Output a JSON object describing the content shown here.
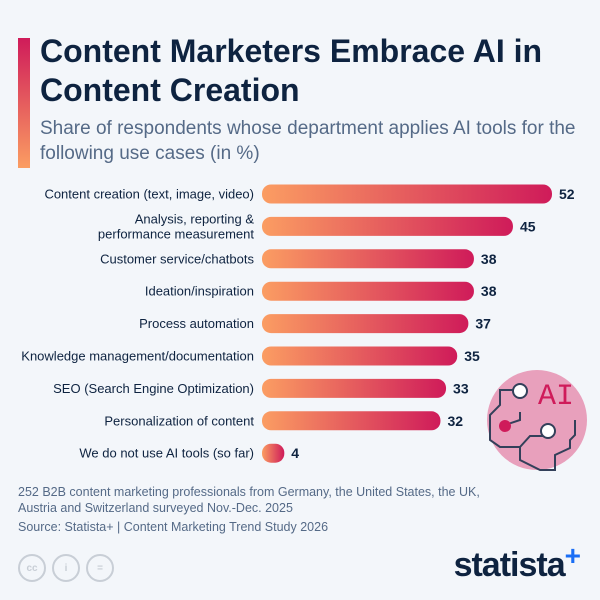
{
  "header": {
    "title": "Content Marketers Embrace AI in Content Creation",
    "subtitle": "Share of respondents whose department applies AI tools for the following use cases (in %)"
  },
  "chart_data": {
    "type": "bar",
    "orientation": "horizontal",
    "title": "Content Marketers Embrace AI in Content Creation",
    "subtitle": "Share of respondents whose department applies AI tools for the following use cases (in %)",
    "categories": [
      [
        "Content creation (text, image, video)"
      ],
      [
        "Analysis, reporting &",
        "performance measurement"
      ],
      [
        "Customer service/chatbots"
      ],
      [
        "Ideation/inspiration"
      ],
      [
        "Process automation"
      ],
      [
        "Knowledge management/documentation"
      ],
      [
        "SEO (Search Engine Optimization)"
      ],
      [
        "Personalization of content"
      ],
      [
        "We do not use AI tools (so far)"
      ]
    ],
    "values": [
      52,
      45,
      38,
      38,
      37,
      35,
      33,
      32,
      4
    ],
    "xlim": [
      0,
      52
    ],
    "grid": false,
    "colors": {
      "bar_start": "#fb9d62",
      "bar_end": "#cf1b5a"
    }
  },
  "footer": {
    "notes": "252 B2B content marketing professionals from Germany, the United States, the UK, Austria and Switzerland surveyed Nov.-Dec. 2025",
    "source": "Source: Statista+ | Content Marketing Trend Study 2026",
    "logo": "statista",
    "logo_plus": "+",
    "cc_icons": [
      "cc",
      "by",
      "nd"
    ]
  },
  "illustration": {
    "text": "AI"
  }
}
